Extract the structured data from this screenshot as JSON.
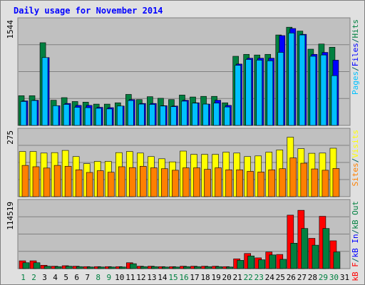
{
  "chart_data": {
    "type": "bar",
    "title": "Daily usage for November 2014",
    "categories": [
      "1",
      "2",
      "3",
      "4",
      "5",
      "6",
      "7",
      "8",
      "9",
      "10",
      "11",
      "12",
      "13",
      "14",
      "15",
      "16",
      "17",
      "18",
      "19",
      "20",
      "21",
      "22",
      "23",
      "24",
      "25",
      "26",
      "27",
      "28",
      "29",
      "30",
      "31"
    ],
    "weekend_days": [
      "1",
      "2",
      "8",
      "9",
      "15",
      "16",
      "22",
      "23",
      "29",
      "30"
    ],
    "panels": [
      {
        "id": "hits",
        "max_label": "1544",
        "ylim": [
          0,
          1544
        ],
        "legend": [
          {
            "label": "Pages",
            "color": "#00c0ff"
          },
          {
            "label": "/",
            "color": "#006060"
          },
          {
            "label": "Files",
            "color": "#0000ff"
          },
          {
            "label": "/",
            "color": "#006060"
          },
          {
            "label": "Hits",
            "color": "#008040"
          }
        ],
        "series": [
          {
            "name": "Hits",
            "color": "#008040",
            "values": [
              460,
              460,
              1280,
              390,
              430,
              370,
              360,
              330,
              330,
              350,
              480,
              400,
              445,
              420,
              400,
              470,
              440,
              450,
              450,
              350,
              1070,
              1100,
              1090,
              1100,
              1400,
              1520,
              1460,
              1180,
              1260,
              1210,
              0
            ]
          },
          {
            "name": "Files",
            "color": "#0000ff",
            "values": [
              380,
              390,
              1050,
              305,
              340,
              310,
              310,
              280,
              275,
              300,
              400,
              340,
              340,
              305,
              300,
              390,
              350,
              330,
              390,
              310,
              950,
              1040,
              1040,
              1040,
              1390,
              1500,
              1410,
              1100,
              1130,
              1010,
              0
            ]
          },
          {
            "name": "Pages",
            "color": "#00c0ff",
            "values": [
              370,
              385,
              1050,
              305,
              325,
              280,
              275,
              265,
              255,
              300,
              385,
              330,
              325,
              300,
              290,
              375,
              345,
              330,
              345,
              285,
              930,
              1020,
              1010,
              1000,
              1130,
              1430,
              1400,
              1070,
              1090,
              770,
              0
            ]
          }
        ]
      },
      {
        "id": "visits",
        "max_label": "275",
        "ylim": [
          0,
          275
        ],
        "legend": [
          {
            "label": "Sites",
            "color": "#ff8000"
          },
          {
            "label": "/",
            "color": "#006060"
          },
          {
            "label": "Visits",
            "color": "#ffff00"
          }
        ],
        "series": [
          {
            "name": "Visits",
            "color": "#ffff00",
            "values": [
              205,
              205,
              198,
              200,
              210,
              182,
              150,
              160,
              160,
              200,
              205,
              198,
              182,
              172,
              158,
              207,
              192,
              192,
              192,
              202,
              198,
              182,
              185,
              202,
              212,
              270,
              218,
              197,
              198,
              220,
              0
            ]
          },
          {
            "name": "Sites",
            "color": "#ff8000",
            "values": [
              142,
              136,
              130,
              142,
              138,
              122,
              110,
              118,
              111,
              136,
              132,
              138,
              131,
              127,
              120,
              131,
              131,
              124,
              131,
              122,
              122,
              115,
              112,
              122,
              127,
              176,
              152,
              126,
              120,
              128,
              0
            ]
          }
        ]
      },
      {
        "id": "kbytes",
        "max_label": "114519",
        "ylim": [
          0,
          114519
        ],
        "legend": [
          {
            "label": "kB F",
            "color": "#ff0000"
          },
          {
            "label": "/",
            "color": "#006060"
          },
          {
            "label": "kB In",
            "color": "#0000ff"
          },
          {
            "label": "/",
            "color": "#006060"
          },
          {
            "label": "kB Out",
            "color": "#008040"
          }
        ],
        "series": [
          {
            "name": "kB F",
            "color": "#ff0000",
            "values": [
              14600,
              14600,
              6300,
              4500,
              5400,
              4500,
              3700,
              3700,
              3700,
              3700,
              11000,
              4500,
              4500,
              3700,
              3700,
              4500,
              4500,
              4500,
              4500,
              3700,
              18300,
              28300,
              20100,
              31000,
              26500,
              100000,
              109000,
              56600,
              97800,
              52000,
              0
            ]
          },
          {
            "name": "kB In",
            "color": "#0000ff",
            "values": [
              0,
              0,
              0,
              0,
              0,
              0,
              0,
              0,
              0,
              0,
              0,
              0,
              0,
              0,
              0,
              0,
              0,
              0,
              0,
              0,
              0,
              0,
              0,
              0,
              0,
              0,
              0,
              0,
              0,
              0,
              0
            ]
          },
          {
            "name": "kB Out",
            "color": "#008040",
            "values": [
              11000,
              11000,
              4500,
              3700,
              4500,
              3700,
              3000,
              3000,
              3000,
              3000,
              9200,
              3700,
              3700,
              3000,
              3000,
              3700,
              3700,
              3700,
              3700,
              3000,
              15500,
              23700,
              16500,
              25600,
              17400,
              47500,
              75000,
              43800,
              75000,
              31000,
              0
            ]
          }
        ]
      }
    ]
  }
}
